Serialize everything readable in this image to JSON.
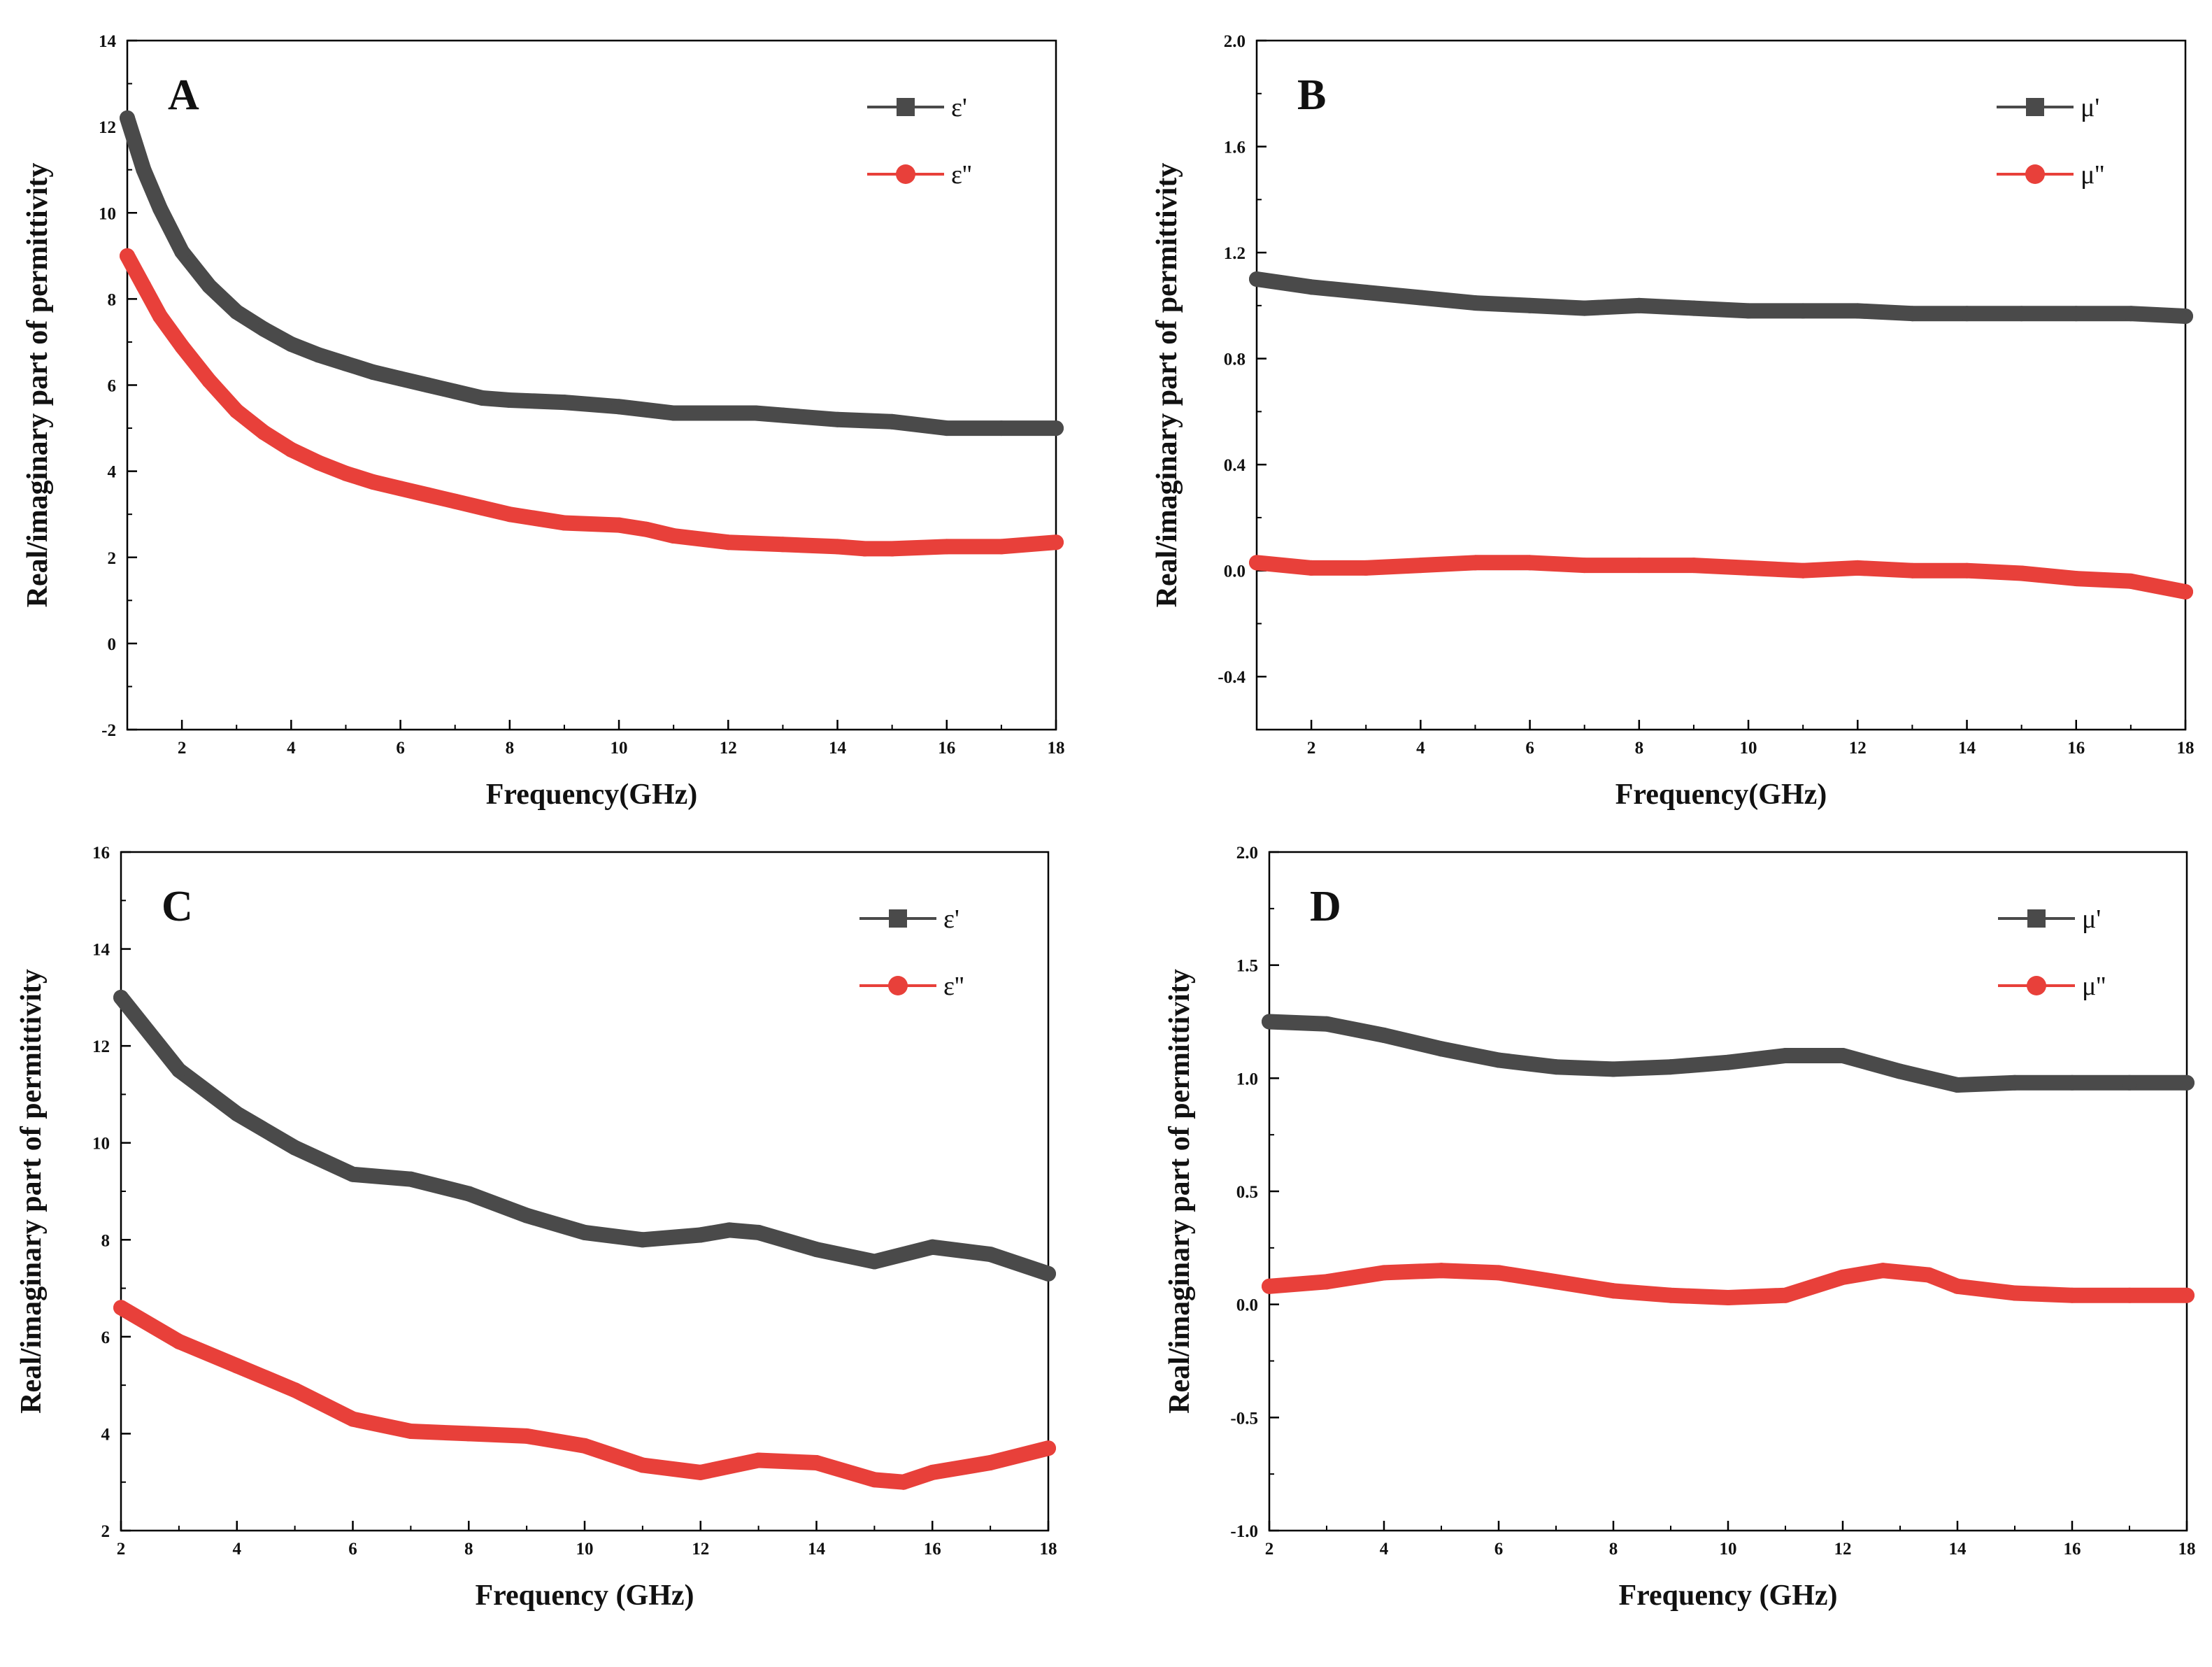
{
  "chart_data": [
    {
      "type": "line",
      "panel": "A",
      "xlabel": "Frequency(GHz)",
      "ylabel": "Real/imaginary part of permittivity",
      "xlim": [
        1,
        18
      ],
      "ylim": [
        -2,
        14
      ],
      "xticks": [
        2,
        4,
        6,
        8,
        10,
        12,
        14,
        16,
        18
      ],
      "xtick_labels": [
        "2",
        "4",
        "6",
        "8",
        "10",
        "12",
        "14",
        "16",
        "18"
      ],
      "yticks": [
        -2,
        0,
        2,
        4,
        6,
        8,
        10,
        12,
        14
      ],
      "ytick_labels": [
        "-2",
        "0",
        "2",
        "4",
        "6",
        "8",
        "10",
        "12",
        "14"
      ],
      "legend_position": "top-right",
      "series": [
        {
          "name": "ε'",
          "color": "#4a4a4a",
          "marker": "square",
          "x": [
            1.0,
            1.3,
            1.6,
            2.0,
            2.5,
            3.0,
            3.5,
            4.0,
            4.5,
            5.0,
            5.5,
            6.0,
            6.5,
            7.0,
            7.5,
            8.0,
            9.0,
            10.0,
            11.0,
            12.0,
            12.5,
            13.0,
            14.0,
            15.0,
            16.0,
            17.0,
            18.0
          ],
          "y": [
            12.2,
            11.0,
            10.1,
            9.1,
            8.3,
            7.7,
            7.3,
            6.95,
            6.7,
            6.5,
            6.3,
            6.15,
            6.0,
            5.85,
            5.7,
            5.65,
            5.6,
            5.5,
            5.35,
            5.35,
            5.35,
            5.3,
            5.2,
            5.15,
            5.0,
            5.0,
            5.0
          ]
        },
        {
          "name": "ε''",
          "color": "#e8403a",
          "marker": "circle",
          "x": [
            1.0,
            1.3,
            1.6,
            2.0,
            2.5,
            3.0,
            3.5,
            4.0,
            4.5,
            5.0,
            5.5,
            6.0,
            6.5,
            7.0,
            7.5,
            8.0,
            9.0,
            10.0,
            10.5,
            11.0,
            12.0,
            13.0,
            14.0,
            14.5,
            15.0,
            16.0,
            17.0,
            18.0
          ],
          "y": [
            9.0,
            8.3,
            7.6,
            6.9,
            6.1,
            5.4,
            4.9,
            4.5,
            4.2,
            3.95,
            3.75,
            3.6,
            3.45,
            3.3,
            3.15,
            3.0,
            2.8,
            2.75,
            2.65,
            2.5,
            2.35,
            2.3,
            2.25,
            2.2,
            2.2,
            2.25,
            2.25,
            2.35
          ]
        }
      ]
    },
    {
      "type": "line",
      "panel": "B",
      "xlabel": "Frequency(GHz)",
      "ylabel": "Real/imaginary part of permittivity",
      "xlim": [
        1,
        18
      ],
      "ylim": [
        -0.6,
        2.0
      ],
      "xticks": [
        2,
        4,
        6,
        8,
        10,
        12,
        14,
        16,
        18
      ],
      "xtick_labels": [
        "2",
        "4",
        "6",
        "8",
        "10",
        "12",
        "14",
        "16",
        "18"
      ],
      "yticks": [
        -0.4,
        0.0,
        0.4,
        0.8,
        1.2,
        1.6,
        2.0
      ],
      "ytick_labels": [
        "-0.4",
        "0.0",
        "0.4",
        "0.8",
        "1.2",
        "1.6",
        "2.0"
      ],
      "legend_position": "top-right",
      "series": [
        {
          "name": "μ'",
          "color": "#4a4a4a",
          "marker": "square",
          "x": [
            1.0,
            2.0,
            3.0,
            4.0,
            5.0,
            6.0,
            7.0,
            8.0,
            9.0,
            10.0,
            11.0,
            12.0,
            13.0,
            14.0,
            15.0,
            16.0,
            17.0,
            18.0
          ],
          "y": [
            1.1,
            1.07,
            1.05,
            1.03,
            1.01,
            1.0,
            0.99,
            1.0,
            0.99,
            0.98,
            0.98,
            0.98,
            0.97,
            0.97,
            0.97,
            0.97,
            0.97,
            0.96
          ]
        },
        {
          "name": "μ''",
          "color": "#e8403a",
          "marker": "circle",
          "x": [
            1.0,
            2.0,
            3.0,
            4.0,
            5.0,
            6.0,
            7.0,
            8.0,
            9.0,
            10.0,
            11.0,
            12.0,
            13.0,
            14.0,
            15.0,
            16.0,
            17.0,
            18.0
          ],
          "y": [
            0.03,
            0.01,
            0.01,
            0.02,
            0.03,
            0.03,
            0.02,
            0.02,
            0.02,
            0.01,
            0.0,
            0.01,
            0.0,
            0.0,
            -0.01,
            -0.03,
            -0.04,
            -0.08
          ]
        }
      ]
    },
    {
      "type": "line",
      "panel": "C",
      "xlabel": "Frequency (GHz)",
      "ylabel": "Real/imaginary part of permittivity",
      "xlim": [
        2,
        18
      ],
      "ylim": [
        2,
        16
      ],
      "xticks": [
        2,
        4,
        6,
        8,
        10,
        12,
        14,
        16,
        18
      ],
      "xtick_labels": [
        "2",
        "4",
        "6",
        "8",
        "10",
        "12",
        "14",
        "16",
        "18"
      ],
      "yticks": [
        2,
        4,
        6,
        8,
        10,
        12,
        14,
        16
      ],
      "ytick_labels": [
        "2",
        "4",
        "6",
        "8",
        "10",
        "12",
        "14",
        "16"
      ],
      "legend_position": "top-right",
      "series": [
        {
          "name": "ε'",
          "color": "#4a4a4a",
          "marker": "square",
          "x": [
            2.0,
            3.0,
            4.0,
            5.0,
            6.0,
            7.0,
            8.0,
            9.0,
            10.0,
            11.0,
            12.0,
            12.5,
            13.0,
            14.0,
            15.0,
            16.0,
            17.0,
            18.0
          ],
          "y": [
            13.0,
            11.5,
            10.6,
            9.9,
            9.35,
            9.25,
            8.95,
            8.5,
            8.15,
            8.0,
            8.1,
            8.2,
            8.15,
            7.8,
            7.55,
            7.85,
            7.7,
            7.3
          ]
        },
        {
          "name": "ε''",
          "color": "#e8403a",
          "marker": "circle",
          "x": [
            2.0,
            3.0,
            4.0,
            5.0,
            6.0,
            7.0,
            8.0,
            9.0,
            10.0,
            11.0,
            12.0,
            13.0,
            14.0,
            15.0,
            15.5,
            16.0,
            17.0,
            18.0
          ],
          "y": [
            6.6,
            5.9,
            5.4,
            4.9,
            4.3,
            4.05,
            4.0,
            3.95,
            3.75,
            3.35,
            3.2,
            3.45,
            3.4,
            3.05,
            3.0,
            3.2,
            3.4,
            3.7
          ]
        }
      ]
    },
    {
      "type": "line",
      "panel": "D",
      "xlabel": "Frequency (GHz)",
      "ylabel": "Real/imaginary part of permittivity",
      "xlim": [
        2,
        18
      ],
      "ylim": [
        -1.0,
        2.0
      ],
      "xticks": [
        2,
        4,
        6,
        8,
        10,
        12,
        14,
        16,
        18
      ],
      "xtick_labels": [
        "2",
        "4",
        "6",
        "8",
        "10",
        "12",
        "14",
        "16",
        "18"
      ],
      "yticks": [
        -1.0,
        -0.5,
        0.0,
        0.5,
        1.0,
        1.5,
        2.0
      ],
      "ytick_labels": [
        "-1.0",
        "-0.5",
        "0.0",
        "0.5",
        "1.0",
        "1.5",
        "2.0"
      ],
      "legend_position": "top-right",
      "series": [
        {
          "name": "μ'",
          "color": "#4a4a4a",
          "marker": "square",
          "x": [
            2.0,
            3.0,
            4.0,
            5.0,
            6.0,
            7.0,
            8.0,
            9.0,
            10.0,
            11.0,
            12.0,
            13.0,
            14.0,
            15.0,
            16.0,
            17.0,
            18.0
          ],
          "y": [
            1.25,
            1.24,
            1.19,
            1.13,
            1.08,
            1.05,
            1.04,
            1.05,
            1.07,
            1.1,
            1.1,
            1.03,
            0.97,
            0.98,
            0.98,
            0.98,
            0.98
          ]
        },
        {
          "name": "μ''",
          "color": "#e8403a",
          "marker": "circle",
          "x": [
            2.0,
            3.0,
            4.0,
            5.0,
            6.0,
            7.0,
            8.0,
            9.0,
            10.0,
            11.0,
            12.0,
            12.7,
            13.5,
            14.0,
            15.0,
            16.0,
            17.0,
            18.0
          ],
          "y": [
            0.08,
            0.1,
            0.14,
            0.15,
            0.14,
            0.1,
            0.06,
            0.04,
            0.03,
            0.04,
            0.12,
            0.15,
            0.13,
            0.08,
            0.05,
            0.04,
            0.04,
            0.04
          ]
        }
      ]
    }
  ]
}
